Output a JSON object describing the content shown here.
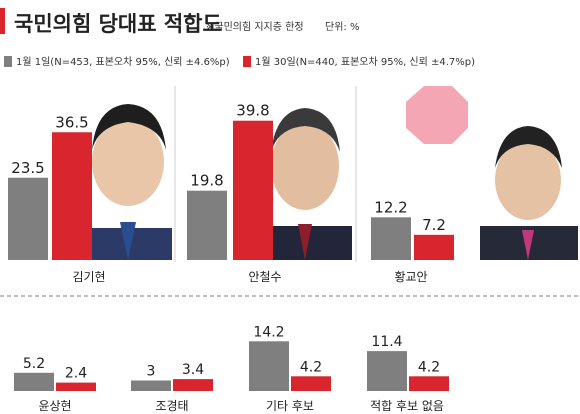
{
  "header": {
    "title": "국민의힘 당대표 적합도",
    "note": "※국민의힘 지지층 한정",
    "unit": "단위: %"
  },
  "colors": {
    "series1": "#7f7f7f",
    "series2": "#d9262e",
    "accent_bar": "#d9262e",
    "photo_placeholder": "#c8c8c8",
    "logo_pink": "#f4a6b4"
  },
  "chart_data": [
    {
      "type": "bar",
      "title": "국민의힘 당대표 적합도",
      "categories": [
        "김기현",
        "안철수",
        "황교안"
      ],
      "series": [
        {
          "name": "1월 1일(N=453, 표본오차 95%, 신뢰 ±4.6%p)",
          "values": [
            23.5,
            19.8,
            12.2
          ]
        },
        {
          "name": "1월 30일(N=440, 표본오차 95%, 신뢰 ±4.7%p)",
          "values": [
            36.5,
            39.8,
            7.2
          ]
        }
      ],
      "ylim": [
        0,
        42
      ],
      "legend": "top",
      "grid": false
    },
    {
      "type": "bar",
      "categories": [
        "윤상현",
        "조경태",
        "기타 후보",
        "적합 후보 없음"
      ],
      "series": [
        {
          "name": "1월 1일",
          "values": [
            5.2,
            3,
            14.2,
            11.4
          ]
        },
        {
          "name": "1월 30일",
          "values": [
            2.4,
            3.4,
            4.2,
            4.2
          ]
        }
      ],
      "ylim": [
        0,
        42
      ],
      "grid": false
    }
  ]
}
